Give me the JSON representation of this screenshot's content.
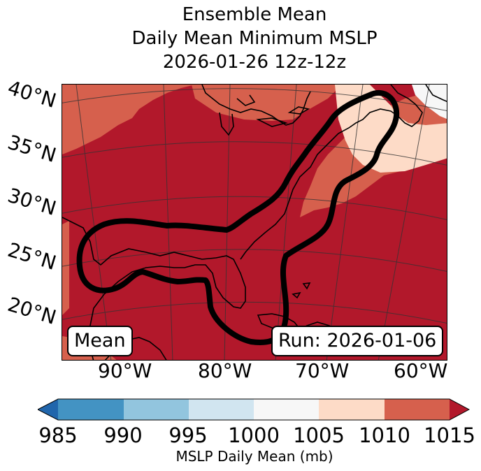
{
  "title": {
    "line1": "Ensemble Mean",
    "line2": "Daily Mean Minimum MSLP",
    "line3": "2026-01-26 12z-12z"
  },
  "map": {
    "lat_labels": [
      "40°N",
      "35°N",
      "30°N",
      "25°N",
      "20°N"
    ],
    "lon_labels": [
      "90°W",
      "80°W",
      "70°W",
      "60°W"
    ],
    "mean_label": "Mean",
    "run_label": "Run: 2026-01-06",
    "fill_colors": {
      "c1015": "#b2182b",
      "c1010": "#d6604d",
      "c1005": "#fddbc7",
      "c1000": "#f7f7f7",
      "coast": "#000000",
      "outline": "#000000",
      "grid": "#333333"
    }
  },
  "colorbar": {
    "ticks": [
      "985",
      "990",
      "995",
      "1000",
      "1005",
      "1010",
      "1015"
    ],
    "colors": [
      "#2166ac",
      "#4393c3",
      "#92c5de",
      "#d1e5f0",
      "#f7f7f7",
      "#fddbc7",
      "#d6604d",
      "#b2182b"
    ],
    "label": "MSLP Daily Mean (mb)"
  }
}
